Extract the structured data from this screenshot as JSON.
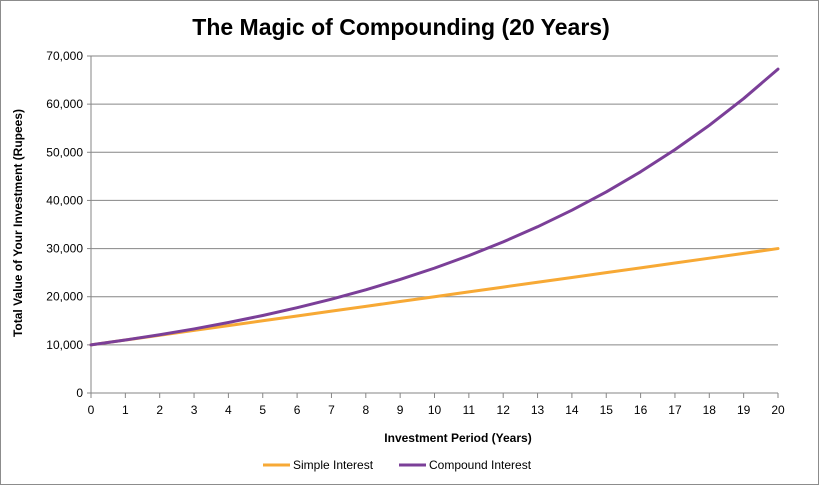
{
  "chart_data": {
    "type": "line",
    "title": "The Magic of Compounding (20 Years)",
    "xlabel": "Investment Period (Years)",
    "ylabel": "Total Value of Your Investment (Rupees)",
    "x": [
      0,
      1,
      2,
      3,
      4,
      5,
      6,
      7,
      8,
      9,
      10,
      11,
      12,
      13,
      14,
      15,
      16,
      17,
      18,
      19,
      20
    ],
    "xlim": [
      0,
      20
    ],
    "ylim": [
      0,
      70000
    ],
    "yticks": [
      0,
      10000,
      20000,
      30000,
      40000,
      50000,
      60000,
      70000
    ],
    "ytick_labels": [
      "0",
      "10,000",
      "20,000",
      "30,000",
      "40,000",
      "50,000",
      "60,000",
      "70,000"
    ],
    "grid": true,
    "legend_position": "bottom",
    "series": [
      {
        "name": "Simple Interest",
        "color": "#F7A935",
        "values": [
          10000,
          11000,
          12000,
          13000,
          14000,
          15000,
          16000,
          17000,
          18000,
          19000,
          20000,
          21000,
          22000,
          23000,
          24000,
          25000,
          26000,
          27000,
          28000,
          29000,
          30000
        ]
      },
      {
        "name": "Compound Interest",
        "color": "#7B3F98",
        "values": [
          10000,
          11000,
          12100,
          13310,
          14641,
          16105,
          17716,
          19487,
          21436,
          23579,
          25937,
          28531,
          31384,
          34523,
          37975,
          41772,
          45950,
          50545,
          55599,
          61159,
          67275
        ]
      }
    ]
  }
}
